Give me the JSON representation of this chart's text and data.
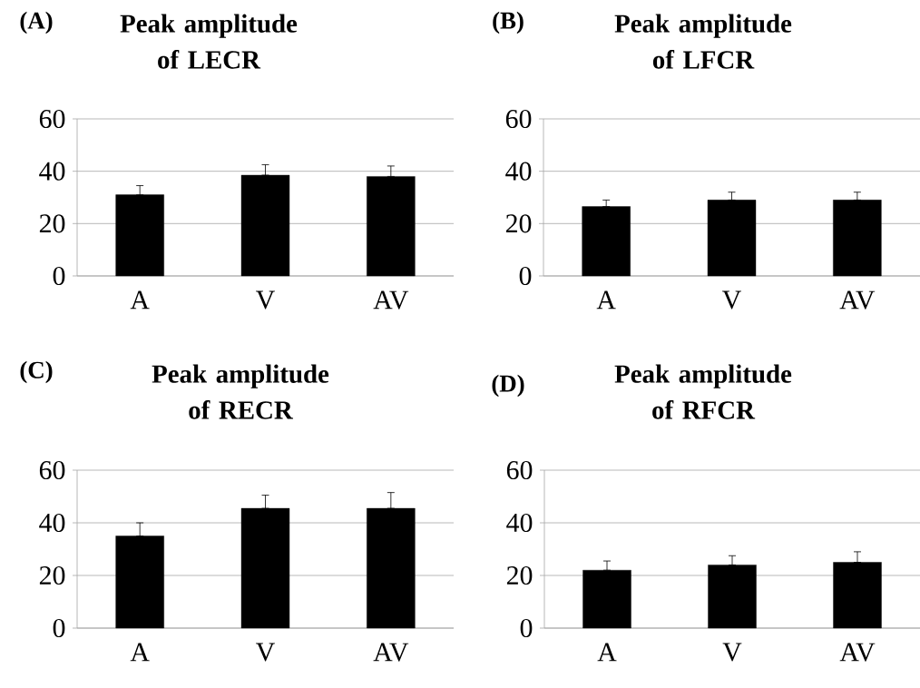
{
  "chart_data": [
    {
      "type": "bar",
      "title": "Peak amplitude of LECR",
      "annotations": [
        "(A)"
      ],
      "categories": [
        "A",
        "V",
        "AV"
      ],
      "values": [
        31,
        38.5,
        38
      ],
      "errors": [
        [
          31,
          34.5
        ],
        [
          38.5,
          42.5
        ],
        [
          38,
          42
        ]
      ],
      "color": "#000000",
      "ylim": [
        0,
        60
      ],
      "yticks": [
        0,
        20,
        40,
        60
      ],
      "grid": "y"
    },
    {
      "type": "bar",
      "title": "Peak amplitude of LFCR",
      "annotations": [
        "(B)"
      ],
      "categories": [
        "A",
        "V",
        "AV"
      ],
      "values": [
        26.5,
        29,
        29
      ],
      "errors": [
        [
          26.5,
          29
        ],
        [
          29,
          32
        ],
        [
          29,
          32
        ]
      ],
      "color": "#000000",
      "ylim": [
        0,
        60
      ],
      "yticks": [
        0,
        20,
        40,
        60
      ],
      "grid": "y"
    },
    {
      "type": "bar",
      "title": "Peak amplitude of RECR",
      "annotations": [
        "(C)"
      ],
      "categories": [
        "A",
        "V",
        "AV"
      ],
      "values": [
        35,
        45.5,
        45.5
      ],
      "errors": [
        [
          35,
          40
        ],
        [
          45.5,
          50.5
        ],
        [
          45.5,
          51.5
        ]
      ],
      "color": "#000000",
      "ylim": [
        0,
        60
      ],
      "yticks": [
        0,
        20,
        40,
        60
      ],
      "grid": "y"
    },
    {
      "type": "bar",
      "title": "Peak amplitude of RFCR",
      "annotations": [
        "(D)"
      ],
      "categories": [
        "A",
        "V",
        "AV"
      ],
      "values": [
        22,
        24,
        25
      ],
      "errors": [
        [
          22,
          25.5
        ],
        [
          24,
          27.5
        ],
        [
          25,
          29
        ]
      ],
      "color": "#000000",
      "ylim": [
        0,
        60
      ],
      "yticks": [
        0,
        20,
        40,
        60
      ],
      "grid": "y"
    }
  ]
}
